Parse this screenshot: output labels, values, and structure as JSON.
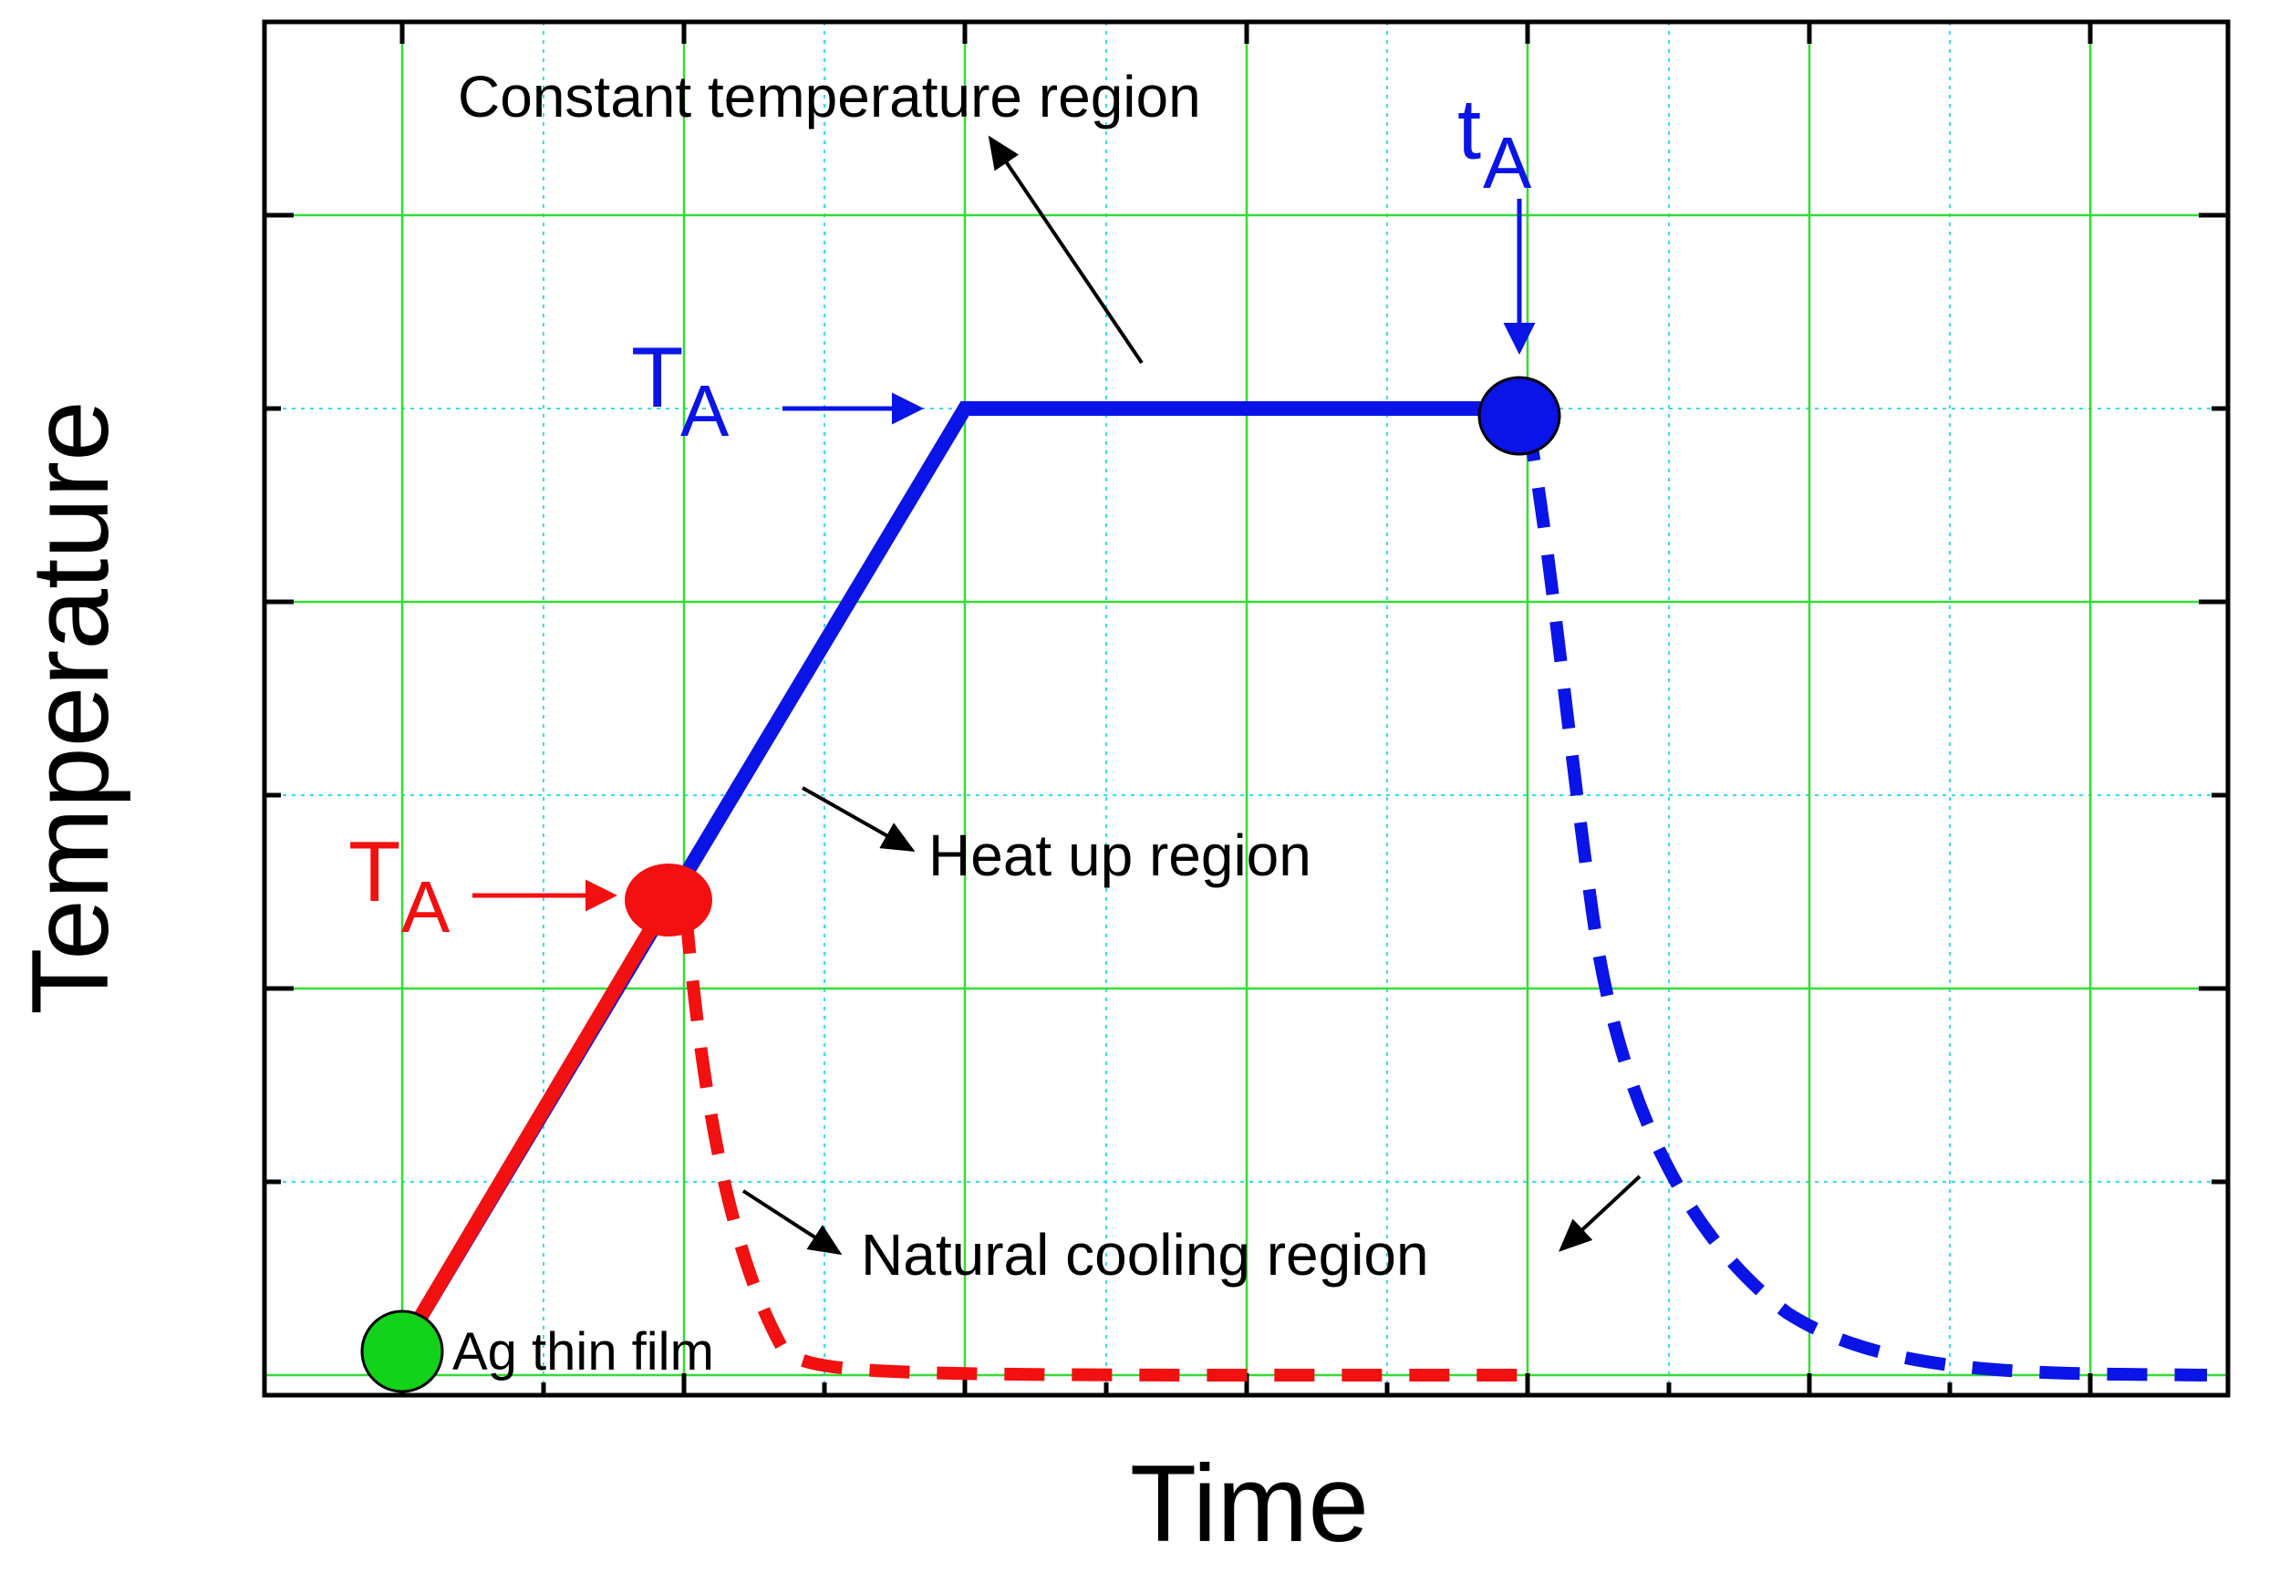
{
  "diagram": {
    "x_axis_label": "Time",
    "y_axis_label": "Temperature",
    "annotations": {
      "constant_region": "Constant temperature region",
      "heat_up_region": "Heat up region",
      "natural_cooling_region": "Natural cooling region",
      "substrate_label": "Ag thin film",
      "blue_temp_main": "T",
      "blue_temp_sub": "A",
      "blue_time_main": "t",
      "blue_time_sub": "A",
      "red_temp_main": "T",
      "red_temp_sub": "A"
    },
    "colors": {
      "blue_profile": "#0a14e6",
      "red_profile": "#f21010",
      "start_marker": "#12d21a",
      "major_grid": "#33dd33",
      "minor_grid": "#33dcf0",
      "frame": "#000000"
    }
  }
}
